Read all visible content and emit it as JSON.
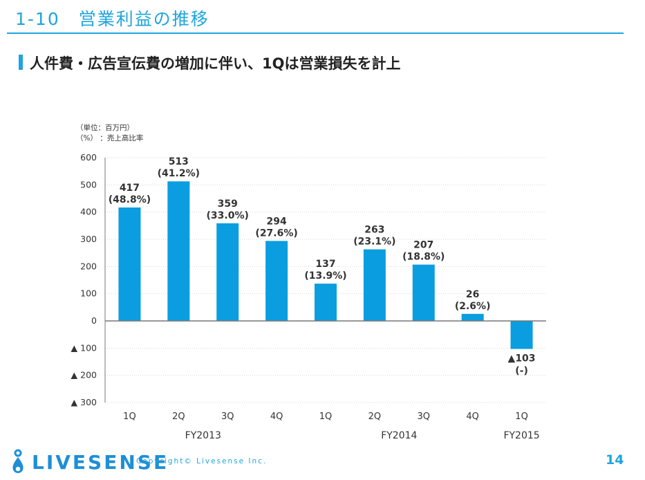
{
  "header": {
    "title": "1-10　営業利益の推移"
  },
  "subtitle": "人件費・広告宣伝費の増加に伴い、1Qは営業損失を計上",
  "notes": {
    "unit": "（単位：百万円）",
    "pct": "（%）  ：売上高比率"
  },
  "footer": {
    "logo_text": "LIVESENSE",
    "copyright": "Copyright© Livesense Inc.",
    "page_number": "14"
  },
  "colors": {
    "bar": "#0a9ee0",
    "accent": "#1ea5de",
    "logo": "#1e8fd6"
  },
  "icons": {
    "logo": "livesense-drop-icon"
  },
  "chart_data": {
    "type": "bar",
    "categories": [
      "1Q",
      "2Q",
      "3Q",
      "4Q",
      "1Q",
      "2Q",
      "3Q",
      "4Q",
      "1Q"
    ],
    "groups": [
      {
        "label": "FY2013",
        "from": 0,
        "to": 3
      },
      {
        "label": "FY2014",
        "from": 4,
        "to": 7
      },
      {
        "label": "FY2015",
        "from": 8,
        "to": 8
      }
    ],
    "values": [
      417,
      513,
      359,
      294,
      137,
      263,
      207,
      26,
      -103
    ],
    "value_labels": [
      "417",
      "513",
      "359",
      "294",
      "137",
      "263",
      "207",
      "26",
      "▲103"
    ],
    "ratio_labels": [
      "(48.8%)",
      "(41.2%)",
      "(33.0%)",
      "(27.6%)",
      "(13.9%)",
      "(23.1%)",
      "(18.8%)",
      "(2.6%)",
      "(-)"
    ],
    "yticks": [
      600,
      500,
      400,
      300,
      200,
      100,
      0,
      -100,
      -200,
      -300
    ],
    "ytick_labels": [
      "600",
      "500",
      "400",
      "300",
      "200",
      "100",
      "0",
      "▲ 100",
      "▲ 200",
      "▲ 300"
    ],
    "ylim": [
      -300,
      600
    ],
    "grid": true
  }
}
